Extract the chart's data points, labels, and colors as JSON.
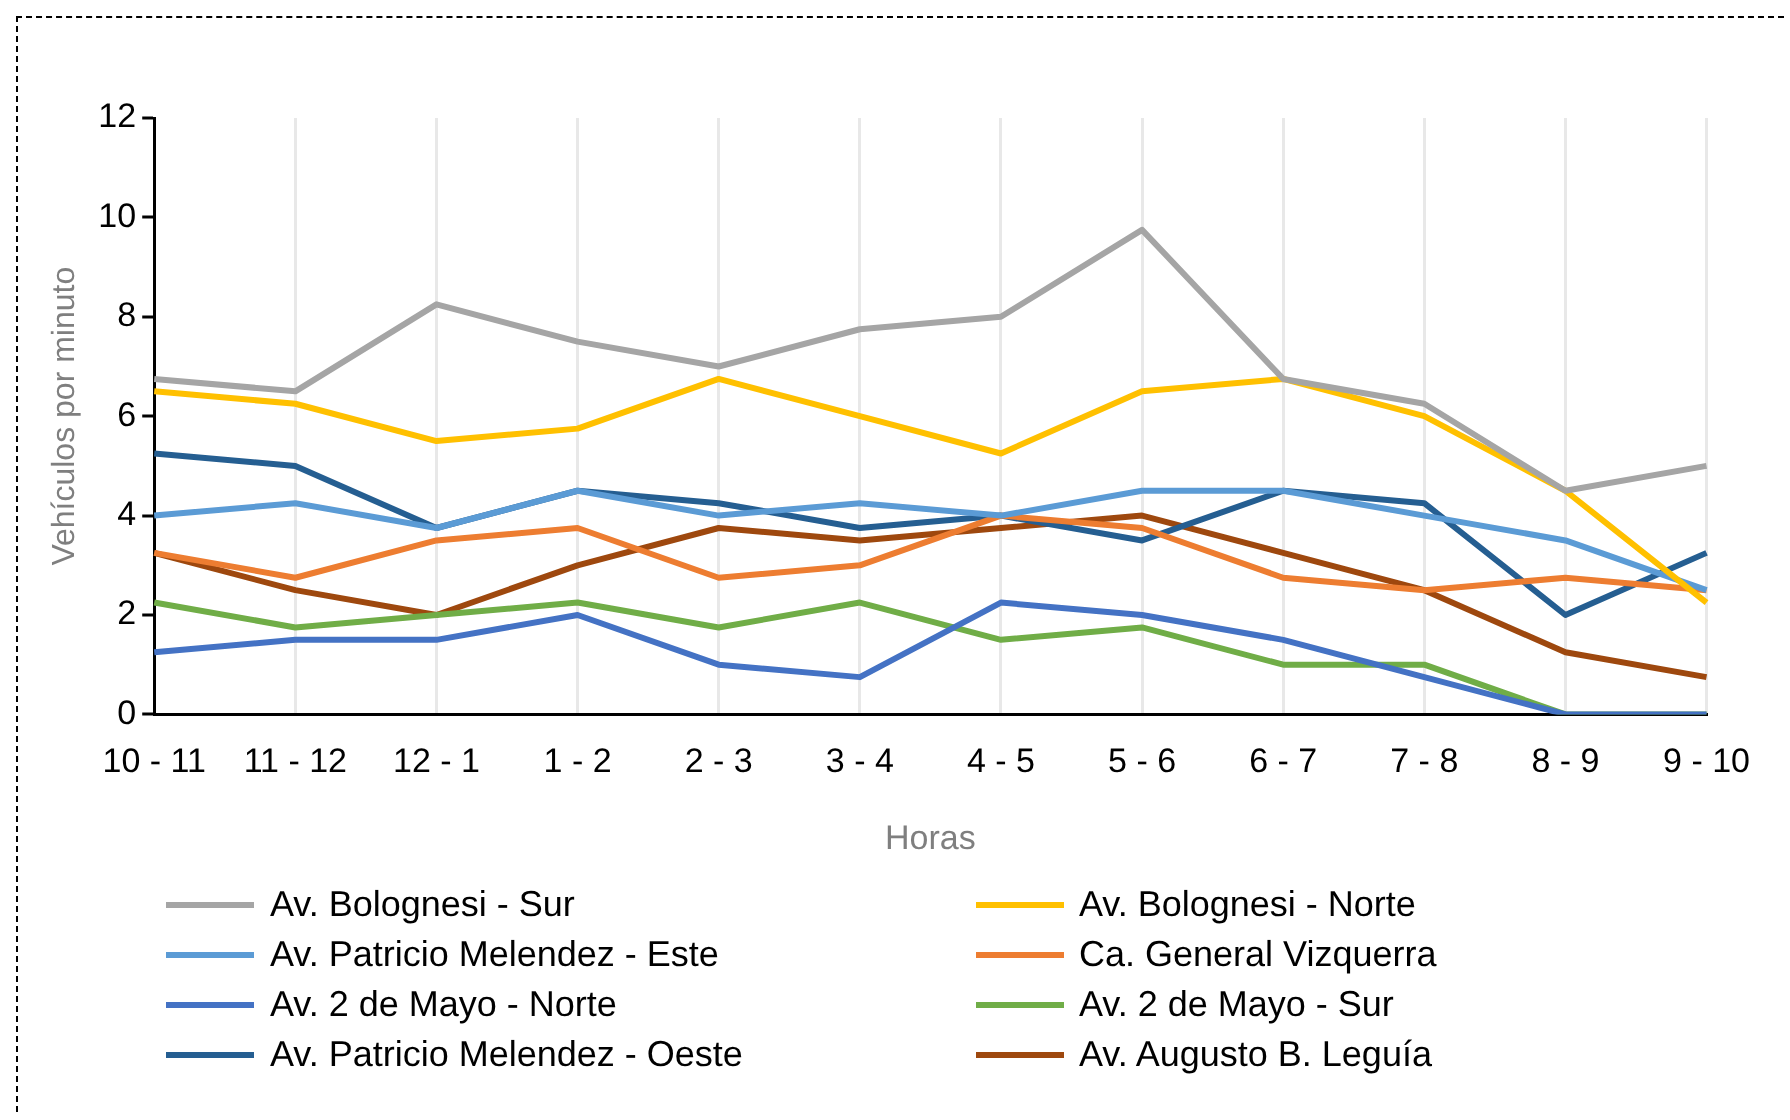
{
  "chart_data": {
    "type": "line",
    "xlabel": "Horas",
    "ylabel": "Vehículos por minuto",
    "categories": [
      "10 - 11",
      "11 - 12",
      "12 - 1",
      "1 - 2",
      "2 - 3",
      "3 - 4",
      "4 - 5",
      "5 - 6",
      "6 - 7",
      "7 - 8",
      "8 - 9",
      "9 - 10"
    ],
    "ylim": [
      0,
      12
    ],
    "yticks": [
      0,
      2,
      4,
      6,
      8,
      10,
      12
    ],
    "grid": "x",
    "legend": "bottom",
    "marker": "none",
    "line_style": "solid",
    "series": [
      {
        "name": "Av. Bolognesi - Sur",
        "color": "#a5a5a5",
        "values": [
          6.75,
          6.5,
          8.25,
          7.5,
          7,
          7.75,
          8,
          9.75,
          6.75,
          6.25,
          4.5,
          5
        ]
      },
      {
        "name": "Av. Bolognesi - Norte",
        "color": "#ffc000",
        "values": [
          6.5,
          6.25,
          5.5,
          5.75,
          6.75,
          6,
          5.25,
          6.5,
          6.75,
          6,
          4.5,
          2.25
        ]
      },
      {
        "name": "Av. Patricio Melendez - Este",
        "color": "#5b9bd5",
        "values": [
          4,
          4.25,
          3.75,
          4.5,
          4,
          4.25,
          4,
          4.5,
          4.5,
          4,
          3.5,
          2.5
        ]
      },
      {
        "name": "Ca. General Vizquerra",
        "color": "#ed7d31",
        "values": [
          3.25,
          2.75,
          3.5,
          3.75,
          2.75,
          3,
          4,
          3.75,
          2.75,
          2.5,
          2.75,
          2.5
        ]
      },
      {
        "name": "Av. 2 de Mayo - Norte",
        "color": "#4472c4",
        "values": [
          1.25,
          1.5,
          1.5,
          2,
          1,
          0.75,
          2.25,
          2,
          1.5,
          0.75,
          0,
          0
        ]
      },
      {
        "name": "Av. 2 de Mayo - Sur",
        "color": "#70ad47",
        "values": [
          2.25,
          1.75,
          2,
          2.25,
          1.75,
          2.25,
          1.5,
          1.75,
          1,
          1,
          0,
          0
        ]
      },
      {
        "name": "Av. Patricio Melendez - Oeste",
        "color": "#255e91",
        "values": [
          5.25,
          5,
          3.75,
          4.5,
          4.25,
          3.75,
          4,
          3.5,
          4.5,
          4.25,
          2,
          3.25
        ]
      },
      {
        "name": "Av. Augusto B. Leguía",
        "color": "#9e480e",
        "values": [
          3.25,
          2.5,
          2,
          3,
          3.75,
          3.5,
          3.75,
          4,
          3.25,
          2.5,
          1.25,
          0.75
        ]
      }
    ]
  }
}
